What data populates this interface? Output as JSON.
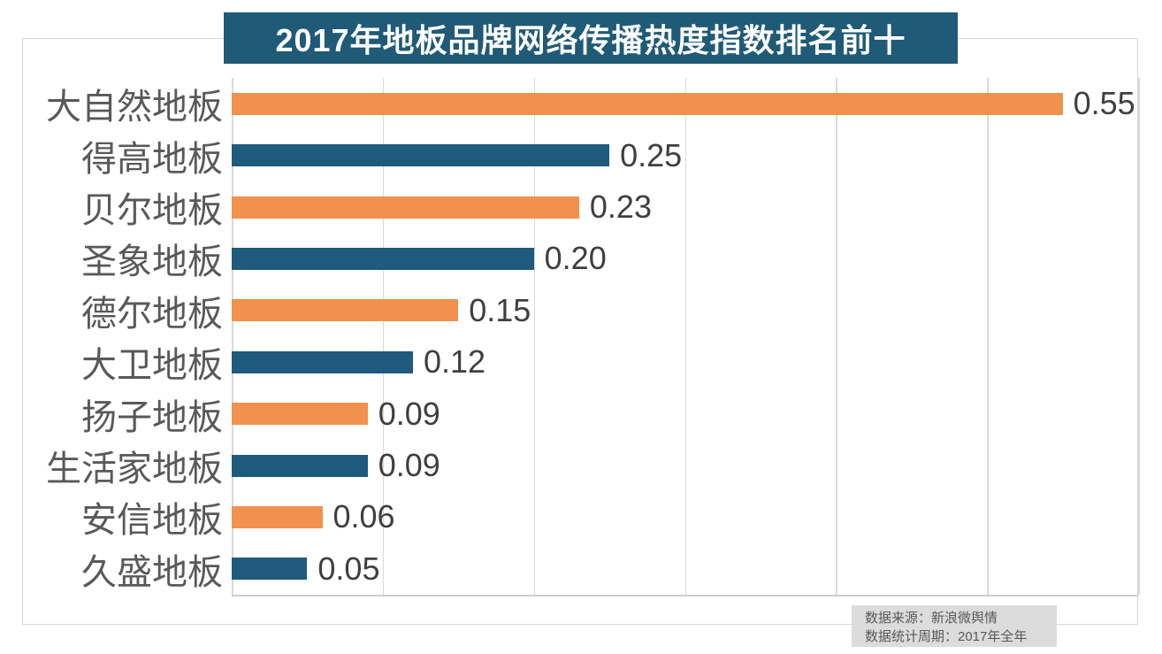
{
  "title": "2017年地板品牌网络传播热度指数排名前十",
  "footer": {
    "line1": "数据来源：新浪微舆情",
    "line2": "数据统计周期：2017年全年"
  },
  "colors": {
    "title_background": "#1f5a76",
    "title_text": "#ffffff",
    "bar_orange": "#f0924d",
    "bar_blue": "#1e5b7d",
    "category_label_text": "#595959",
    "value_label_text": "#3f3f3f",
    "gridline": "#d9d9d9",
    "frame_border": "#d7d7d7",
    "footer_background": "#dcdcdc",
    "footer_text": "#595959"
  },
  "chart_data": {
    "type": "bar",
    "orientation": "horizontal",
    "title": "2017年地板品牌网络传播热度指数排名前十",
    "categories": [
      "大自然地板",
      "得高地板",
      "贝尔地板",
      "圣象地板",
      "德尔地板",
      "大卫地板",
      "扬子地板",
      "生活家地板",
      "安信地板",
      "久盛地板"
    ],
    "values": [
      0.55,
      0.25,
      0.23,
      0.2,
      0.15,
      0.12,
      0.09,
      0.09,
      0.06,
      0.05
    ],
    "value_labels": [
      "0.55",
      "0.25",
      "0.23",
      "0.20",
      "0.15",
      "0.12",
      "0.09",
      "0.09",
      "0.06",
      "0.05"
    ],
    "bar_color_pattern": [
      "#f0924d",
      "#1e5b7d"
    ],
    "xlabel": "",
    "ylabel": "",
    "xlim": [
      0,
      0.6
    ],
    "gridline_interval": 0.1,
    "grid": true,
    "legend": false,
    "value_labels_shown": true,
    "source_note": "数据来源：新浪微舆情",
    "period_note": "数据统计周期：2017年全年"
  }
}
